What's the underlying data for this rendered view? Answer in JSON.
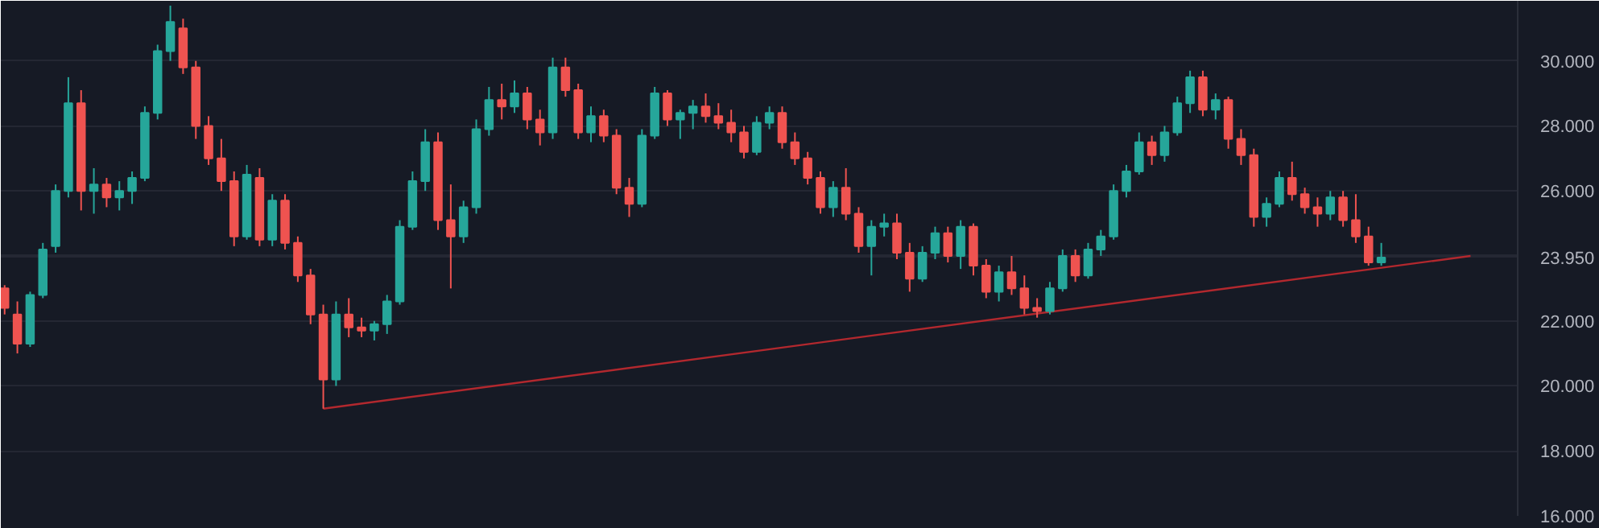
{
  "chart_data": {
    "type": "candlestick",
    "categories": [
      null,
      null,
      null,
      null,
      null,
      null,
      null,
      null,
      null,
      null,
      null,
      null,
      null,
      null,
      null,
      null,
      null,
      null,
      null,
      null,
      null,
      null,
      null,
      null,
      null,
      null,
      null,
      null,
      null,
      null,
      null,
      null,
      null,
      null,
      null,
      null,
      null,
      null,
      null,
      null,
      null,
      null,
      null,
      null,
      null,
      null,
      null,
      null,
      null,
      null,
      null,
      null,
      null,
      null,
      null,
      null,
      null,
      null,
      null,
      null,
      null,
      null,
      null,
      null,
      null,
      null,
      null,
      null,
      null,
      null,
      null,
      null,
      null,
      null,
      null,
      null,
      null,
      null,
      null,
      null,
      null,
      null,
      null,
      null,
      null,
      null,
      null,
      null,
      null,
      null,
      null,
      null,
      null,
      null,
      null,
      null,
      null,
      null,
      null,
      null,
      null,
      null,
      null,
      null,
      null,
      null,
      null,
      null,
      null,
      null,
      null,
      null,
      null,
      null,
      null,
      null
    ],
    "ohlc": [
      [
        23.0,
        23.1,
        22.2,
        22.4
      ],
      [
        22.2,
        22.6,
        21.0,
        21.3
      ],
      [
        21.3,
        22.9,
        21.2,
        22.8
      ],
      [
        22.8,
        24.4,
        22.7,
        24.2
      ],
      [
        24.3,
        26.2,
        24.1,
        26.0
      ],
      [
        26.0,
        29.5,
        25.8,
        28.7
      ],
      [
        28.7,
        29.1,
        25.4,
        26.0
      ],
      [
        26.0,
        26.7,
        25.3,
        26.2
      ],
      [
        26.2,
        26.4,
        25.5,
        25.8
      ],
      [
        25.8,
        26.3,
        25.4,
        26.0
      ],
      [
        26.0,
        26.6,
        25.6,
        26.4
      ],
      [
        26.4,
        28.6,
        26.3,
        28.4
      ],
      [
        28.4,
        30.5,
        28.2,
        30.3
      ],
      [
        30.3,
        31.7,
        30.0,
        31.2
      ],
      [
        31.0,
        31.3,
        29.6,
        29.8
      ],
      [
        29.8,
        30.0,
        27.6,
        28.0
      ],
      [
        28.0,
        28.3,
        26.8,
        27.0
      ],
      [
        27.0,
        27.6,
        26.0,
        26.3
      ],
      [
        26.3,
        26.6,
        24.3,
        24.6
      ],
      [
        24.6,
        26.8,
        24.5,
        26.5
      ],
      [
        26.4,
        26.7,
        24.3,
        24.5
      ],
      [
        24.5,
        25.9,
        24.3,
        25.7
      ],
      [
        25.7,
        25.9,
        24.2,
        24.4
      ],
      [
        24.4,
        24.6,
        23.2,
        23.4
      ],
      [
        23.4,
        23.6,
        21.9,
        22.2
      ],
      [
        22.2,
        22.5,
        19.3,
        20.2
      ],
      [
        20.2,
        22.6,
        20.0,
        22.2
      ],
      [
        22.2,
        22.7,
        21.5,
        21.8
      ],
      [
        21.8,
        22.1,
        21.5,
        21.7
      ],
      [
        21.7,
        22.0,
        21.4,
        21.9
      ],
      [
        21.9,
        22.8,
        21.6,
        22.6
      ],
      [
        22.6,
        25.1,
        22.5,
        24.9
      ],
      [
        24.9,
        26.6,
        24.8,
        26.3
      ],
      [
        26.3,
        27.9,
        26.0,
        27.5
      ],
      [
        27.5,
        27.8,
        24.8,
        25.1
      ],
      [
        25.1,
        26.2,
        23.0,
        24.6
      ],
      [
        24.6,
        25.7,
        24.4,
        25.5
      ],
      [
        25.5,
        28.2,
        25.3,
        27.9
      ],
      [
        27.9,
        29.2,
        27.7,
        28.8
      ],
      [
        28.8,
        29.3,
        28.2,
        28.6
      ],
      [
        28.6,
        29.4,
        28.4,
        29.0
      ],
      [
        29.0,
        29.2,
        27.9,
        28.2
      ],
      [
        28.2,
        28.5,
        27.4,
        27.8
      ],
      [
        27.8,
        30.1,
        27.6,
        29.8
      ],
      [
        29.8,
        30.1,
        28.9,
        29.1
      ],
      [
        29.1,
        29.3,
        27.6,
        27.8
      ],
      [
        27.8,
        28.6,
        27.5,
        28.3
      ],
      [
        28.3,
        28.5,
        27.5,
        27.7
      ],
      [
        27.7,
        27.9,
        25.9,
        26.1
      ],
      [
        26.1,
        26.4,
        25.2,
        25.6
      ],
      [
        25.6,
        27.9,
        25.5,
        27.7
      ],
      [
        27.7,
        29.2,
        27.6,
        29.0
      ],
      [
        29.0,
        29.1,
        28.0,
        28.2
      ],
      [
        28.2,
        28.5,
        27.6,
        28.4
      ],
      [
        28.4,
        28.8,
        27.9,
        28.6
      ],
      [
        28.6,
        29.0,
        28.1,
        28.3
      ],
      [
        28.3,
        28.7,
        27.9,
        28.1
      ],
      [
        28.1,
        28.5,
        27.5,
        27.8
      ],
      [
        27.8,
        28.0,
        27.0,
        27.2
      ],
      [
        27.2,
        28.3,
        27.1,
        28.1
      ],
      [
        28.1,
        28.6,
        27.9,
        28.4
      ],
      [
        28.4,
        28.6,
        27.3,
        27.5
      ],
      [
        27.5,
        27.8,
        26.8,
        27.0
      ],
      [
        27.0,
        27.2,
        26.2,
        26.4
      ],
      [
        26.4,
        26.6,
        25.3,
        25.5
      ],
      [
        25.5,
        26.3,
        25.2,
        26.1
      ],
      [
        26.1,
        26.7,
        25.1,
        25.3
      ],
      [
        25.3,
        25.5,
        24.1,
        24.3
      ],
      [
        24.3,
        25.1,
        23.4,
        24.9
      ],
      [
        24.9,
        25.3,
        24.6,
        25.0
      ],
      [
        25.0,
        25.3,
        23.9,
        24.1
      ],
      [
        24.1,
        24.4,
        22.9,
        23.3
      ],
      [
        23.3,
        24.3,
        23.2,
        24.1
      ],
      [
        24.1,
        24.9,
        23.9,
        24.7
      ],
      [
        24.7,
        24.9,
        23.8,
        24.0
      ],
      [
        24.0,
        25.1,
        23.6,
        24.9
      ],
      [
        24.9,
        25.0,
        23.4,
        23.7
      ],
      [
        23.7,
        23.9,
        22.7,
        22.9
      ],
      [
        22.9,
        23.7,
        22.6,
        23.5
      ],
      [
        23.5,
        24.0,
        22.8,
        23.0
      ],
      [
        23.0,
        23.4,
        22.2,
        22.4
      ],
      [
        22.4,
        22.7,
        22.1,
        22.3
      ],
      [
        22.3,
        23.2,
        22.2,
        23.0
      ],
      [
        23.0,
        24.2,
        22.9,
        24.0
      ],
      [
        24.0,
        24.2,
        23.2,
        23.4
      ],
      [
        23.4,
        24.4,
        23.3,
        24.2
      ],
      [
        24.2,
        24.8,
        24.0,
        24.6
      ],
      [
        24.6,
        26.2,
        24.5,
        26.0
      ],
      [
        26.0,
        26.8,
        25.8,
        26.6
      ],
      [
        26.6,
        27.8,
        26.5,
        27.5
      ],
      [
        27.5,
        27.7,
        26.8,
        27.1
      ],
      [
        27.1,
        28.0,
        26.9,
        27.8
      ],
      [
        27.8,
        28.9,
        27.7,
        28.7
      ],
      [
        28.7,
        29.7,
        28.4,
        29.5
      ],
      [
        29.5,
        29.7,
        28.3,
        28.5
      ],
      [
        28.5,
        29.0,
        28.2,
        28.8
      ],
      [
        28.8,
        28.9,
        27.3,
        27.6
      ],
      [
        27.6,
        27.9,
        26.8,
        27.1
      ],
      [
        27.1,
        27.3,
        24.9,
        25.2
      ],
      [
        25.2,
        25.8,
        24.9,
        25.6
      ],
      [
        25.6,
        26.6,
        25.5,
        26.4
      ],
      [
        26.4,
        26.9,
        25.7,
        25.9
      ],
      [
        25.9,
        26.1,
        25.3,
        25.5
      ],
      [
        25.5,
        25.8,
        24.9,
        25.3
      ],
      [
        25.3,
        26.0,
        25.1,
        25.8
      ],
      [
        25.8,
        26.0,
        24.9,
        25.1
      ],
      [
        25.1,
        25.9,
        24.4,
        24.6
      ],
      [
        24.6,
        24.9,
        23.7,
        23.8
      ],
      [
        23.8,
        24.4,
        23.7,
        23.95
      ],
      null,
      null,
      null,
      null,
      null,
      null,
      null
    ],
    "colors": [
      "#ef5350",
      "#ef5350",
      "#26a69a",
      "#26a69a",
      "#26a69a",
      "#26a69a",
      "#ef5350",
      "#26a69a",
      "#ef5350",
      "#26a69a",
      "#26a69a",
      "#26a69a",
      "#26a69a",
      "#26a69a",
      "#ef5350",
      "#ef5350",
      "#ef5350",
      "#ef5350",
      "#ef5350",
      "#26a69a",
      "#ef5350",
      "#26a69a",
      "#ef5350",
      "#ef5350",
      "#ef5350",
      "#ef5350",
      "#26a69a",
      "#ef5350",
      "#ef5350",
      "#26a69a",
      "#26a69a",
      "#26a69a",
      "#26a69a",
      "#26a69a",
      "#ef5350",
      "#ef5350",
      "#26a69a",
      "#26a69a",
      "#26a69a",
      "#ef5350",
      "#26a69a",
      "#ef5350",
      "#ef5350",
      "#26a69a",
      "#ef5350",
      "#ef5350",
      "#26a69a",
      "#ef5350",
      "#ef5350",
      "#ef5350",
      "#26a69a",
      "#26a69a",
      "#ef5350",
      "#26a69a",
      "#26a69a",
      "#ef5350",
      "#ef5350",
      "#ef5350",
      "#ef5350",
      "#26a69a",
      "#26a69a",
      "#ef5350",
      "#ef5350",
      "#ef5350",
      "#ef5350",
      "#26a69a",
      "#ef5350",
      "#ef5350",
      "#26a69a",
      "#26a69a",
      "#ef5350",
      "#ef5350",
      "#26a69a",
      "#26a69a",
      "#ef5350",
      "#26a69a",
      "#ef5350",
      "#ef5350",
      "#26a69a",
      "#ef5350",
      "#ef5350",
      "#ef5350",
      "#26a69a",
      "#26a69a",
      "#ef5350",
      "#26a69a",
      "#26a69a",
      "#26a69a",
      "#26a69a",
      "#26a69a",
      "#ef5350",
      "#26a69a",
      "#26a69a",
      "#26a69a",
      "#ef5350",
      "#26a69a",
      "#ef5350",
      "#ef5350",
      "#ef5350",
      "#26a69a",
      "#26a69a",
      "#ef5350",
      "#ef5350",
      "#ef5350",
      "#26a69a",
      "#ef5350",
      "#ef5350",
      "#ef5350",
      "#26a69a",
      null,
      null,
      null,
      null,
      null,
      null,
      null
    ],
    "series": [
      {
        "type": "line",
        "values": [
          null,
          null,
          null,
          null,
          null,
          null,
          null,
          null,
          null,
          null,
          null,
          null,
          null,
          null,
          null,
          null,
          null,
          null,
          null,
          null,
          null,
          null,
          null,
          null,
          null,
          19.3,
          null,
          null,
          null,
          null,
          null,
          null,
          null,
          null,
          null,
          null,
          null,
          null,
          null,
          null,
          null,
          null,
          null,
          null,
          null,
          null,
          null,
          null,
          null,
          null,
          null,
          null,
          null,
          null,
          null,
          null,
          null,
          null,
          null,
          null,
          null,
          null,
          null,
          null,
          null,
          null,
          null,
          null,
          null,
          null,
          null,
          null,
          null,
          null,
          null,
          null,
          null,
          null,
          null,
          null,
          null,
          null,
          null,
          null,
          null,
          null,
          null,
          null,
          null,
          null,
          null,
          null,
          null,
          null,
          null,
          null,
          null,
          null,
          null,
          null,
          null,
          null,
          null,
          null,
          null,
          null,
          null,
          null,
          null,
          null,
          null,
          null,
          null,
          null,
          null,
          24.0
        ],
        "color": "#b2282e"
      }
    ],
    "ylim": [
      16.0,
      31.85
    ],
    "yticks": [
      {
        "value": 16,
        "label": "16.000"
      },
      {
        "value": 18,
        "label": "18.000"
      },
      {
        "value": 20,
        "label": "20.000"
      },
      {
        "value": 22,
        "label": "22.000"
      },
      {
        "value": 23.95,
        "label": "23.950"
      },
      {
        "value": 24,
        "label": null
      },
      {
        "value": 26,
        "label": "26.000"
      },
      {
        "value": 28,
        "label": "28.000"
      },
      {
        "value": 30,
        "label": "30.000"
      }
    ],
    "grid": "y",
    "tick_labels": "y"
  }
}
